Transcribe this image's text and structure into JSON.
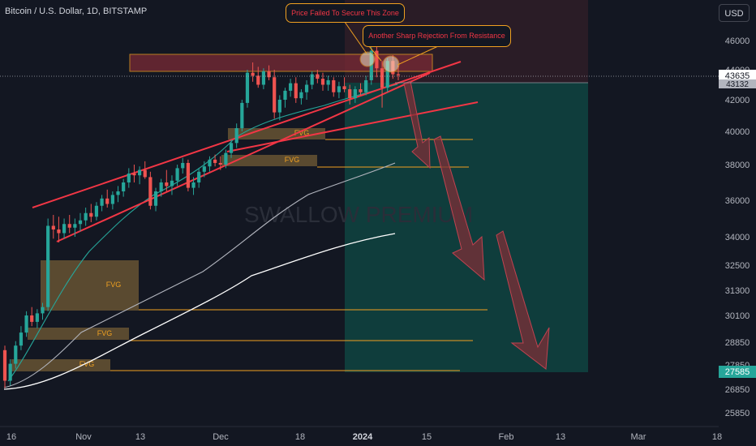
{
  "header": {
    "title": "Bitcoin / U.S. Dollar, 1D, BITSTAMP"
  },
  "toolbar": {
    "currency_label": "USD"
  },
  "watermark": "SWALLOW PREMIUM",
  "annotations": {
    "callout_1": "Price Failed To Secure This Zone",
    "callout_2": "Another Sharp Rejection From Resistance",
    "fvg_label": "FVG"
  },
  "colors": {
    "background": "#131722",
    "bullish": "#26a69a",
    "bearish": "#ef5350",
    "channel": "#f23645",
    "fvg_line": "#f0a020",
    "ma_fast": "#26a69a",
    "ma_mid": "#b2b5be",
    "ma_slow": "#ffffff",
    "target_zone": "#0f4b45",
    "arrow_fill": "#7d2f37"
  },
  "chart_data": {
    "type": "candlestick",
    "symbol": "Bitcoin / U.S. Dollar",
    "timeframe": "1D",
    "exchange": "BITSTAMP",
    "x_tick_labels": [
      "16",
      "Nov",
      "13",
      "Dec",
      "18",
      "2024",
      "15",
      "Feb",
      "13",
      "Mar",
      "18"
    ],
    "y_tick_labels": [
      46000,
      44000,
      42000,
      40000,
      38000,
      36000,
      34000,
      32500,
      31300,
      30100,
      28850,
      27850,
      26850,
      25850
    ],
    "price_labels": {
      "current": 43635,
      "secondary": 43132,
      "target": 27585
    },
    "ohlc": [
      [
        28500,
        28700,
        26900,
        27200
      ],
      [
        27200,
        28100,
        27000,
        27900
      ],
      [
        27900,
        28900,
        27700,
        28700
      ],
      [
        28700,
        29600,
        28500,
        29300
      ],
      [
        29300,
        30300,
        29100,
        30100
      ],
      [
        30100,
        30500,
        29600,
        29800
      ],
      [
        29800,
        30400,
        29500,
        30200
      ],
      [
        30200,
        30700,
        29900,
        30500
      ],
      [
        30500,
        35000,
        30300,
        34600
      ],
      [
        34600,
        35200,
        33900,
        34400
      ],
      [
        34400,
        35100,
        33700,
        34200
      ],
      [
        34200,
        35000,
        33900,
        34700
      ],
      [
        34700,
        35200,
        34200,
        34500
      ],
      [
        34500,
        35000,
        34000,
        34700
      ],
      [
        34700,
        35300,
        34300,
        34900
      ],
      [
        34900,
        35600,
        34600,
        35300
      ],
      [
        35300,
        35800,
        34800,
        35100
      ],
      [
        35100,
        35900,
        34900,
        35700
      ],
      [
        35700,
        36300,
        35400,
        36100
      ],
      [
        36100,
        36600,
        35600,
        35800
      ],
      [
        35800,
        36500,
        35500,
        36300
      ],
      [
        36300,
        36800,
        35900,
        36500
      ],
      [
        36500,
        37200,
        36200,
        37000
      ],
      [
        37000,
        37800,
        36700,
        37500
      ],
      [
        37500,
        38000,
        37000,
        37400
      ],
      [
        37400,
        37900,
        36900,
        37700
      ],
      [
        37700,
        38200,
        37200,
        37300
      ],
      [
        37300,
        37600,
        35500,
        35700
      ],
      [
        35700,
        36700,
        35400,
        36500
      ],
      [
        36500,
        37200,
        36200,
        37000
      ],
      [
        37000,
        37700,
        36500,
        36800
      ],
      [
        36800,
        37400,
        36300,
        37100
      ],
      [
        37100,
        38000,
        36800,
        37800
      ],
      [
        37800,
        38400,
        37500,
        38100
      ],
      [
        38100,
        38300,
        36500,
        36700
      ],
      [
        36700,
        37300,
        36300,
        37000
      ],
      [
        37000,
        37800,
        36700,
        37600
      ],
      [
        37600,
        38200,
        37300,
        37900
      ],
      [
        37900,
        38500,
        37600,
        38300
      ],
      [
        38300,
        38600,
        37900,
        38100
      ],
      [
        38100,
        38500,
        37700,
        38000
      ],
      [
        38000,
        38900,
        37800,
        38700
      ],
      [
        38700,
        39500,
        38400,
        39300
      ],
      [
        39300,
        40500,
        39000,
        40200
      ],
      [
        40200,
        42000,
        40000,
        41800
      ],
      [
        41800,
        44000,
        41500,
        43800
      ],
      [
        43800,
        44500,
        43200,
        43600
      ],
      [
        43600,
        44200,
        42800,
        43000
      ],
      [
        43000,
        44100,
        42700,
        43900
      ],
      [
        43900,
        44300,
        43300,
        43500
      ],
      [
        43500,
        44000,
        40800,
        41200
      ],
      [
        41200,
        42300,
        40700,
        42000
      ],
      [
        42000,
        42800,
        41500,
        42600
      ],
      [
        42600,
        43400,
        42200,
        43100
      ],
      [
        43100,
        43500,
        41800,
        42100
      ],
      [
        42100,
        42700,
        41700,
        42500
      ],
      [
        42500,
        43300,
        42000,
        43000
      ],
      [
        43000,
        43900,
        42700,
        43700
      ],
      [
        43700,
        44000,
        43100,
        43400
      ],
      [
        43400,
        43800,
        42600,
        43000
      ],
      [
        43000,
        43600,
        42600,
        43300
      ],
      [
        43300,
        43500,
        42200,
        42500
      ],
      [
        42500,
        43200,
        42100,
        42900
      ],
      [
        42900,
        43500,
        42500,
        42700
      ],
      [
        42700,
        43000,
        41700,
        42100
      ],
      [
        42100,
        42900,
        41800,
        42700
      ],
      [
        42700,
        43100,
        42300,
        42500
      ],
      [
        42500,
        43600,
        42300,
        43300
      ],
      [
        43300,
        45900,
        43000,
        45300
      ],
      [
        45300,
        45800,
        43500,
        44100
      ],
      [
        44100,
        44600,
        41500,
        42800
      ],
      [
        42800,
        44800,
        42500,
        44600
      ],
      [
        44600,
        45000,
        43400,
        43700
      ],
      [
        43700,
        44300,
        43300,
        43635
      ]
    ],
    "fvg_zones": [
      {
        "label": "FVG",
        "low": 30300,
        "high": 32800
      },
      {
        "label": "FVG",
        "low": 28850,
        "high": 29350
      },
      {
        "label": "FVG",
        "low": 27600,
        "high": 28200
      },
      {
        "label": "FVG",
        "low": 39500,
        "high": 40100
      },
      {
        "label": "FVG",
        "low": 37950,
        "high": 38500
      }
    ],
    "resistance_zone": {
      "low": 44000,
      "high": 45000
    },
    "target_zone": {
      "low": 27585,
      "high": 43132
    },
    "legend": "none",
    "grid": false
  }
}
